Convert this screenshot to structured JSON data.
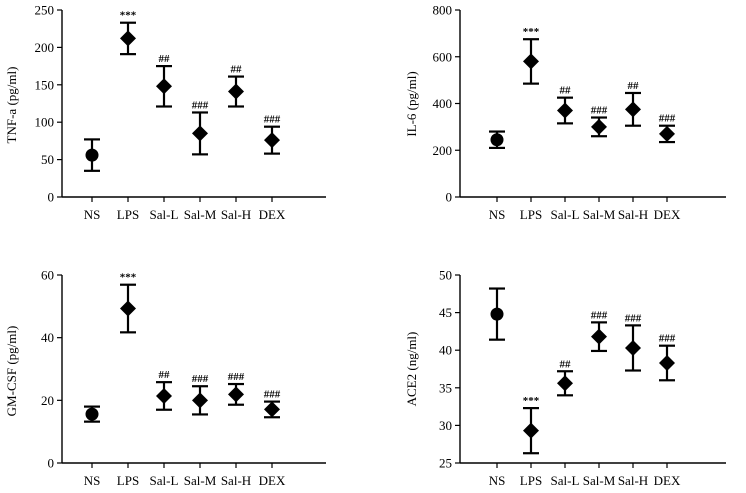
{
  "chart_data": [
    {
      "id": "tnf",
      "type": "scatter",
      "ylabel": "TNF-a (pg/ml)",
      "ylim": [
        0,
        250
      ],
      "yticks": [
        0,
        50,
        100,
        150,
        200,
        250
      ],
      "categories": [
        "NS",
        "LPS",
        "Sal-L",
        "Sal-M",
        "Sal-H",
        "DEX"
      ],
      "values": [
        56,
        212,
        148,
        85,
        141,
        76
      ],
      "errors": [
        21,
        21,
        27,
        28,
        20,
        18
      ],
      "markers": [
        "circle",
        "diamond",
        "diamond",
        "diamond",
        "diamond",
        "diamond"
      ],
      "annotations": [
        "",
        "***",
        "##",
        "###",
        "##",
        "###"
      ]
    },
    {
      "id": "il6",
      "type": "scatter",
      "ylabel": "IL-6 (pg/ml)",
      "ylim": [
        0,
        800
      ],
      "yticks": [
        0,
        200,
        400,
        600,
        800
      ],
      "categories": [
        "NS",
        "LPS",
        "Sal-L",
        "Sal-M",
        "Sal-H",
        "DEX"
      ],
      "values": [
        245,
        580,
        370,
        300,
        375,
        270
      ],
      "errors": [
        35,
        95,
        55,
        40,
        70,
        35
      ],
      "markers": [
        "circle",
        "diamond",
        "diamond",
        "diamond",
        "diamond",
        "diamond"
      ],
      "annotations": [
        "",
        "***",
        "##",
        "###",
        "##",
        "###"
      ]
    },
    {
      "id": "gmcsf",
      "type": "scatter",
      "ylabel": "GM-CSF (pg/ml)",
      "ylim": [
        0,
        60
      ],
      "yticks": [
        0,
        20,
        40,
        60
      ],
      "categories": [
        "NS",
        "LPS",
        "Sal-L",
        "Sal-M",
        "Sal-H",
        "DEX"
      ],
      "values": [
        15.6,
        49.3,
        21.4,
        20.0,
        21.9,
        17.1
      ],
      "errors": [
        2.4,
        7.6,
        4.4,
        4.5,
        3.3,
        2.5
      ],
      "markers": [
        "circle",
        "diamond",
        "diamond",
        "diamond",
        "diamond",
        "diamond"
      ],
      "annotations": [
        "",
        "***",
        "##",
        "###",
        "###",
        "###"
      ]
    },
    {
      "id": "ace2",
      "type": "scatter",
      "ylabel": "ACE2 (ng/ml)",
      "ylim": [
        25,
        50
      ],
      "yticks": [
        25,
        30,
        35,
        40,
        45,
        50
      ],
      "categories": [
        "NS",
        "LPS",
        "Sal-L",
        "Sal-M",
        "Sal-H",
        "DEX"
      ],
      "values": [
        44.8,
        29.3,
        35.6,
        41.8,
        40.3,
        38.3
      ],
      "errors": [
        3.4,
        3.0,
        1.6,
        1.9,
        3.0,
        2.3
      ],
      "markers": [
        "circle",
        "diamond",
        "diamond",
        "diamond",
        "diamond",
        "diamond"
      ],
      "annotations": [
        "",
        "***",
        "##",
        "###",
        "###",
        "###"
      ]
    }
  ]
}
